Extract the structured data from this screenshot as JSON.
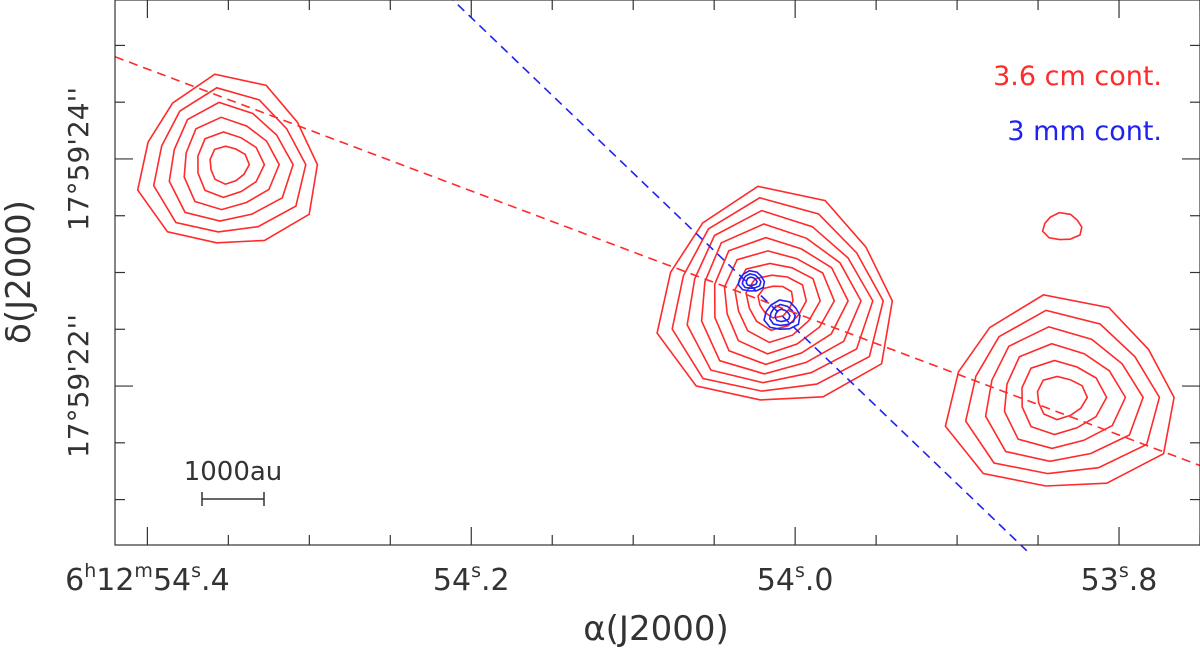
{
  "chart_data": {
    "type": "contour",
    "xlabel_symbol": "α",
    "xlabel_rest": "(J2000)",
    "ylabel_symbol": "δ",
    "ylabel_rest": "(J2000)",
    "x_ticks": [
      {
        "value": 54.4,
        "parts": [
          "6",
          "h",
          "12",
          "m",
          "54",
          "s",
          ".4"
        ]
      },
      {
        "value": 54.2,
        "parts": [
          "",
          "",
          "",
          "",
          "54",
          "s",
          ".2"
        ]
      },
      {
        "value": 54.0,
        "parts": [
          "",
          "",
          "",
          "",
          "54",
          "s",
          ".0"
        ]
      },
      {
        "value": 53.8,
        "parts": [
          "",
          "",
          "",
          "",
          "53",
          "s",
          ".8"
        ]
      }
    ],
    "y_ticks": [
      {
        "value": 24,
        "label": "17°59'24''"
      },
      {
        "value": 22,
        "label": "17°59'22''"
      }
    ],
    "xlim": [
      54.42,
      53.75
    ],
    "ylim": [
      20.6,
      25.4
    ],
    "scalebar_label": "1000au",
    "legend": [
      {
        "label": "3.6 cm cont.",
        "color": "#ff2a2a"
      },
      {
        "label": "3 mm cont.",
        "color": "#2222ee"
      }
    ],
    "lines": [
      {
        "name": "red-axis",
        "color": "#ff2a2a",
        "points": [
          [
            54.42,
            24.9
          ],
          [
            53.75,
            21.3
          ]
        ]
      },
      {
        "name": "blue-axis",
        "color": "#2222ee",
        "points": [
          [
            54.215,
            25.45
          ],
          [
            53.857,
            20.55
          ]
        ]
      }
    ],
    "sources": [
      {
        "name": "source-nw",
        "color": "#ff2a2a",
        "x": 54.35,
        "y": 23.95,
        "levels": 6,
        "rx": 0.055,
        "ry": 0.75
      },
      {
        "name": "source-center",
        "color": "#ff2a2a",
        "x": 54.012,
        "y": 22.75,
        "levels": 9,
        "rx": 0.072,
        "ry": 0.95
      },
      {
        "name": "source-se",
        "color": "#ff2a2a",
        "x": 53.836,
        "y": 21.9,
        "levels": 6,
        "rx": 0.07,
        "ry": 0.85
      },
      {
        "name": "source-small",
        "color": "#ff2a2a",
        "x": 53.835,
        "y": 23.4,
        "levels": 1,
        "rx": 0.012,
        "ry": 0.12
      },
      {
        "name": "mm-core-1",
        "color": "#2222ee",
        "x": 54.027,
        "y": 22.92,
        "levels": 3,
        "rx": 0.008,
        "ry": 0.09
      },
      {
        "name": "mm-core-2",
        "color": "#2222ee",
        "x": 54.008,
        "y": 22.62,
        "levels": 3,
        "rx": 0.011,
        "ry": 0.13
      }
    ]
  }
}
